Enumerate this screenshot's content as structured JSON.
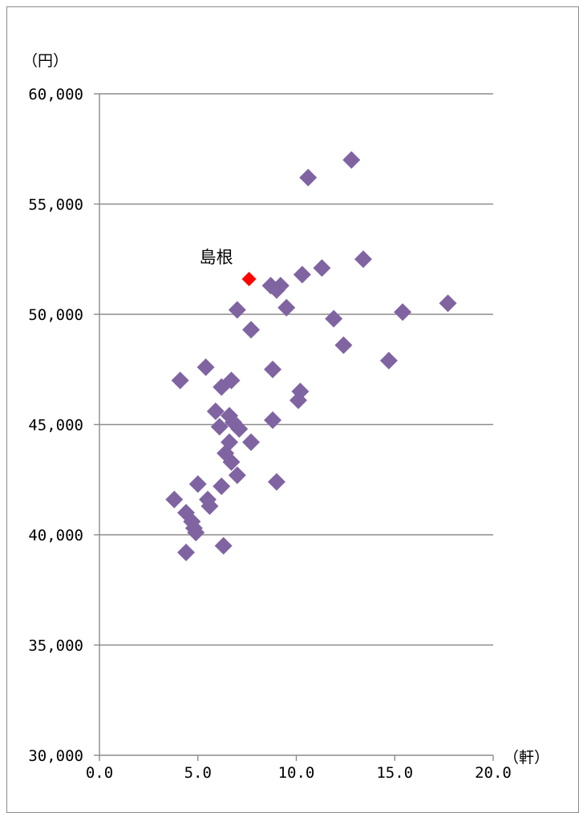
{
  "chart_data": {
    "type": "scatter",
    "title": "",
    "y_unit_label": "（円）",
    "x_unit_label": "（軒）",
    "xlim": [
      0,
      20
    ],
    "ylim": [
      30000,
      60000
    ],
    "x_ticks": [
      "0.0",
      "5.0",
      "10.0",
      "15.0",
      "20.0"
    ],
    "y_ticks": [
      "30,000",
      "35,000",
      "40,000",
      "45,000",
      "50,000",
      "55,000",
      "60,000"
    ],
    "x_tick_values": [
      0,
      5,
      10,
      15,
      20
    ],
    "y_tick_values": [
      30000,
      35000,
      40000,
      45000,
      50000,
      55000,
      60000
    ],
    "grid": "horizontal",
    "colors": {
      "series": "#8064a2",
      "highlight": "#ff0000",
      "grid": "#8c8c8c"
    },
    "series": [
      {
        "points": [
          [
            12.8,
            57000
          ],
          [
            10.6,
            56200
          ],
          [
            13.4,
            52500
          ],
          [
            11.3,
            52100
          ],
          [
            10.3,
            51800
          ],
          [
            8.7,
            51300
          ],
          [
            9.2,
            51300
          ],
          [
            9.0,
            51100
          ],
          [
            17.7,
            50500
          ],
          [
            15.4,
            50100
          ],
          [
            7.0,
            50200
          ],
          [
            9.5,
            50300
          ],
          [
            11.9,
            49800
          ],
          [
            7.7,
            49300
          ],
          [
            12.4,
            48600
          ],
          [
            14.7,
            47900
          ],
          [
            5.4,
            47600
          ],
          [
            8.8,
            47500
          ],
          [
            4.1,
            47000
          ],
          [
            6.7,
            47000
          ],
          [
            6.2,
            46700
          ],
          [
            10.2,
            46500
          ],
          [
            10.1,
            46100
          ],
          [
            5.9,
            45600
          ],
          [
            6.6,
            45400
          ],
          [
            6.8,
            45100
          ],
          [
            6.1,
            44900
          ],
          [
            7.1,
            44800
          ],
          [
            8.8,
            45200
          ],
          [
            6.6,
            44200
          ],
          [
            7.7,
            44200
          ],
          [
            6.4,
            43700
          ],
          [
            6.7,
            43300
          ],
          [
            7.0,
            42700
          ],
          [
            9.0,
            42400
          ],
          [
            5.0,
            42300
          ],
          [
            6.2,
            42200
          ],
          [
            3.8,
            41600
          ],
          [
            5.5,
            41600
          ],
          [
            5.6,
            41300
          ],
          [
            4.4,
            41000
          ],
          [
            4.7,
            40600
          ],
          [
            4.8,
            40300
          ],
          [
            4.9,
            40100
          ],
          [
            6.3,
            39500
          ],
          [
            4.4,
            39200
          ]
        ]
      },
      {
        "name": "島根",
        "highlight": true,
        "points": [
          [
            7.6,
            51600
          ]
        ]
      }
    ],
    "annotations": [
      {
        "text": "島根",
        "x": 7.6,
        "y": 51600
      }
    ]
  }
}
